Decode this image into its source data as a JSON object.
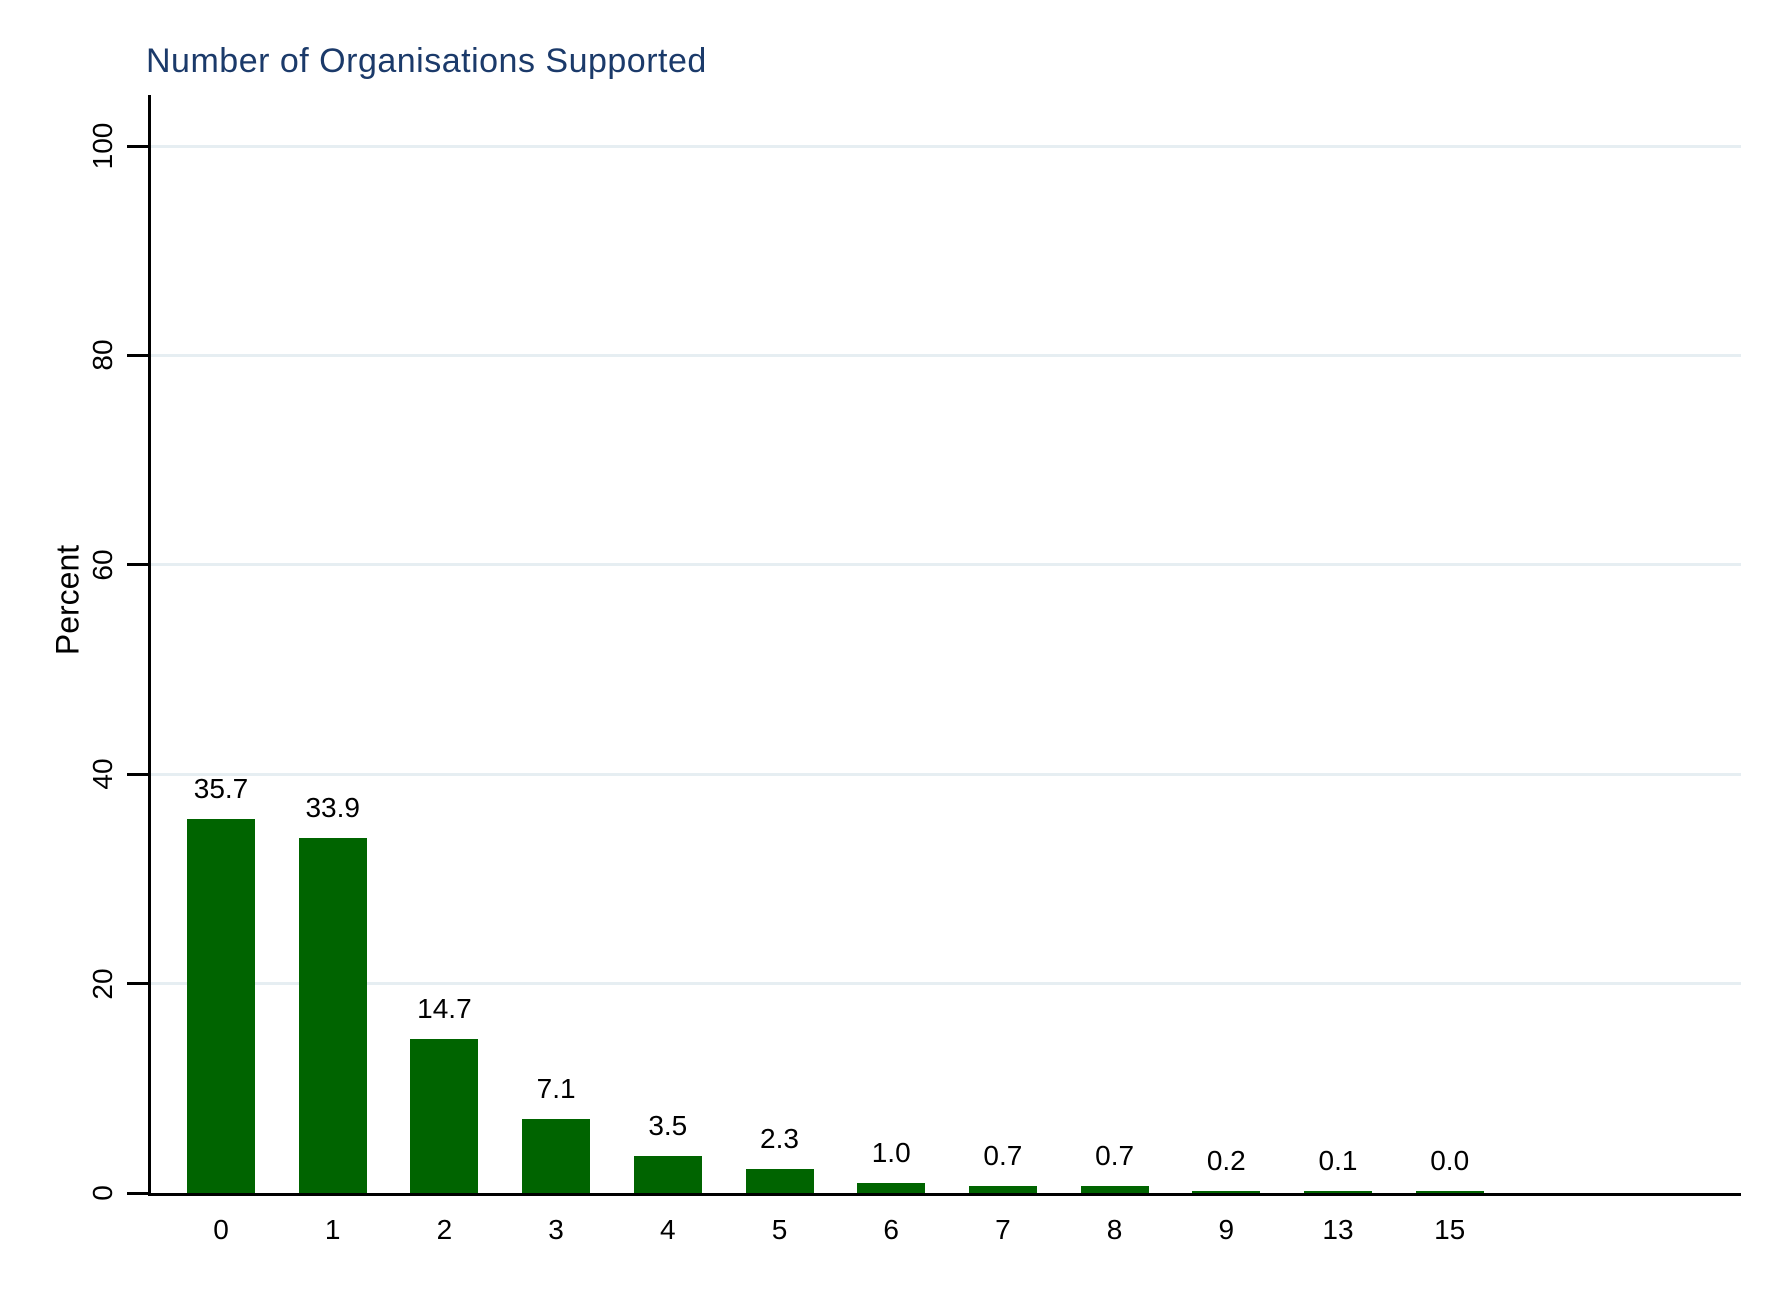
{
  "title": "Number of Organisations Supported",
  "chart_data": {
    "type": "bar",
    "title": "Number of Organisations Supported",
    "xlabel": "",
    "ylabel": "Percent",
    "categories": [
      "0",
      "1",
      "2",
      "3",
      "4",
      "5",
      "6",
      "7",
      "8",
      "9",
      "13",
      "15"
    ],
    "values": [
      35.7,
      33.9,
      14.7,
      7.1,
      3.5,
      2.3,
      1.0,
      0.7,
      0.7,
      0.2,
      0.1,
      0.0
    ],
    "value_labels": [
      "35.7",
      "33.9",
      "14.7",
      "7.1",
      "3.5",
      "2.3",
      "1.0",
      "0.7",
      "0.7",
      "0.2",
      "0.1",
      "0.0"
    ],
    "yticks": [
      0,
      20,
      40,
      60,
      80,
      100
    ],
    "ylim": [
      0,
      105
    ],
    "ytick_label_rotation": 90,
    "grid": "horizontal-light",
    "legend": "none",
    "colors": {
      "bar": "#006400",
      "title": "#1b3a6a",
      "gridline": "#e6eef2",
      "axis": "#000000",
      "text": "#000000",
      "background": "#ffffff"
    }
  }
}
